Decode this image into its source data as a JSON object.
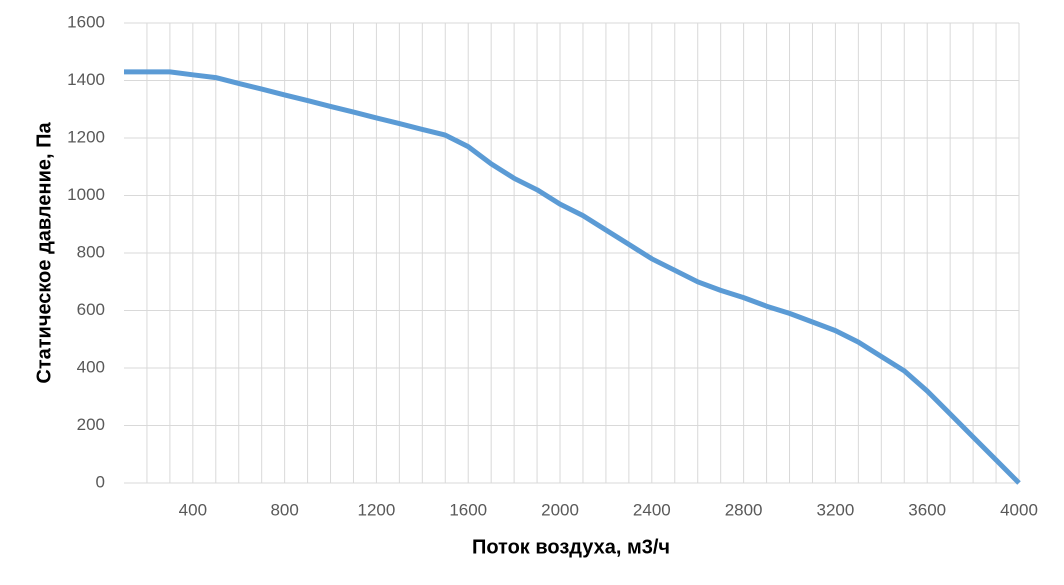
{
  "chart_data": {
    "type": "line",
    "x_label": "Поток воздуха, м3/ч",
    "y_label": "Статическое давление, Па",
    "x": [
      100,
      200,
      300,
      400,
      500,
      600,
      700,
      800,
      900,
      1000,
      1100,
      1200,
      1300,
      1400,
      1500,
      1600,
      1700,
      1800,
      1900,
      2000,
      2100,
      2200,
      2300,
      2400,
      2500,
      2600,
      2700,
      2800,
      2900,
      3000,
      3100,
      3200,
      3300,
      3400,
      3500,
      3600,
      3700,
      3800,
      3900,
      4000
    ],
    "values": [
      1430,
      1430,
      1430,
      1420,
      1410,
      1390,
      1370,
      1350,
      1330,
      1310,
      1290,
      1270,
      1250,
      1230,
      1210,
      1170,
      1110,
      1060,
      1020,
      970,
      930,
      880,
      830,
      780,
      740,
      700,
      670,
      645,
      615,
      590,
      560,
      530,
      490,
      440,
      390,
      320,
      240,
      160,
      80,
      0
    ],
    "color": "#5b9bd5",
    "xlim": [
      100,
      4000
    ],
    "xticks": [
      400,
      800,
      1200,
      1600,
      2000,
      2400,
      2800,
      3200,
      3600,
      4000
    ],
    "xminorgrid": [
      200,
      300,
      500,
      600,
      700,
      900,
      1000,
      1100,
      1300,
      1400,
      1500,
      1700,
      1800,
      1900,
      2100,
      2200,
      2300,
      2500,
      2600,
      2700,
      2900,
      3000,
      3100,
      3300,
      3400,
      3500,
      3700,
      3800,
      3900
    ],
    "ylim": [
      0,
      1600
    ],
    "yticks": [
      0,
      200,
      400,
      600,
      800,
      1000,
      1200,
      1400,
      1600
    ],
    "grid": true
  }
}
